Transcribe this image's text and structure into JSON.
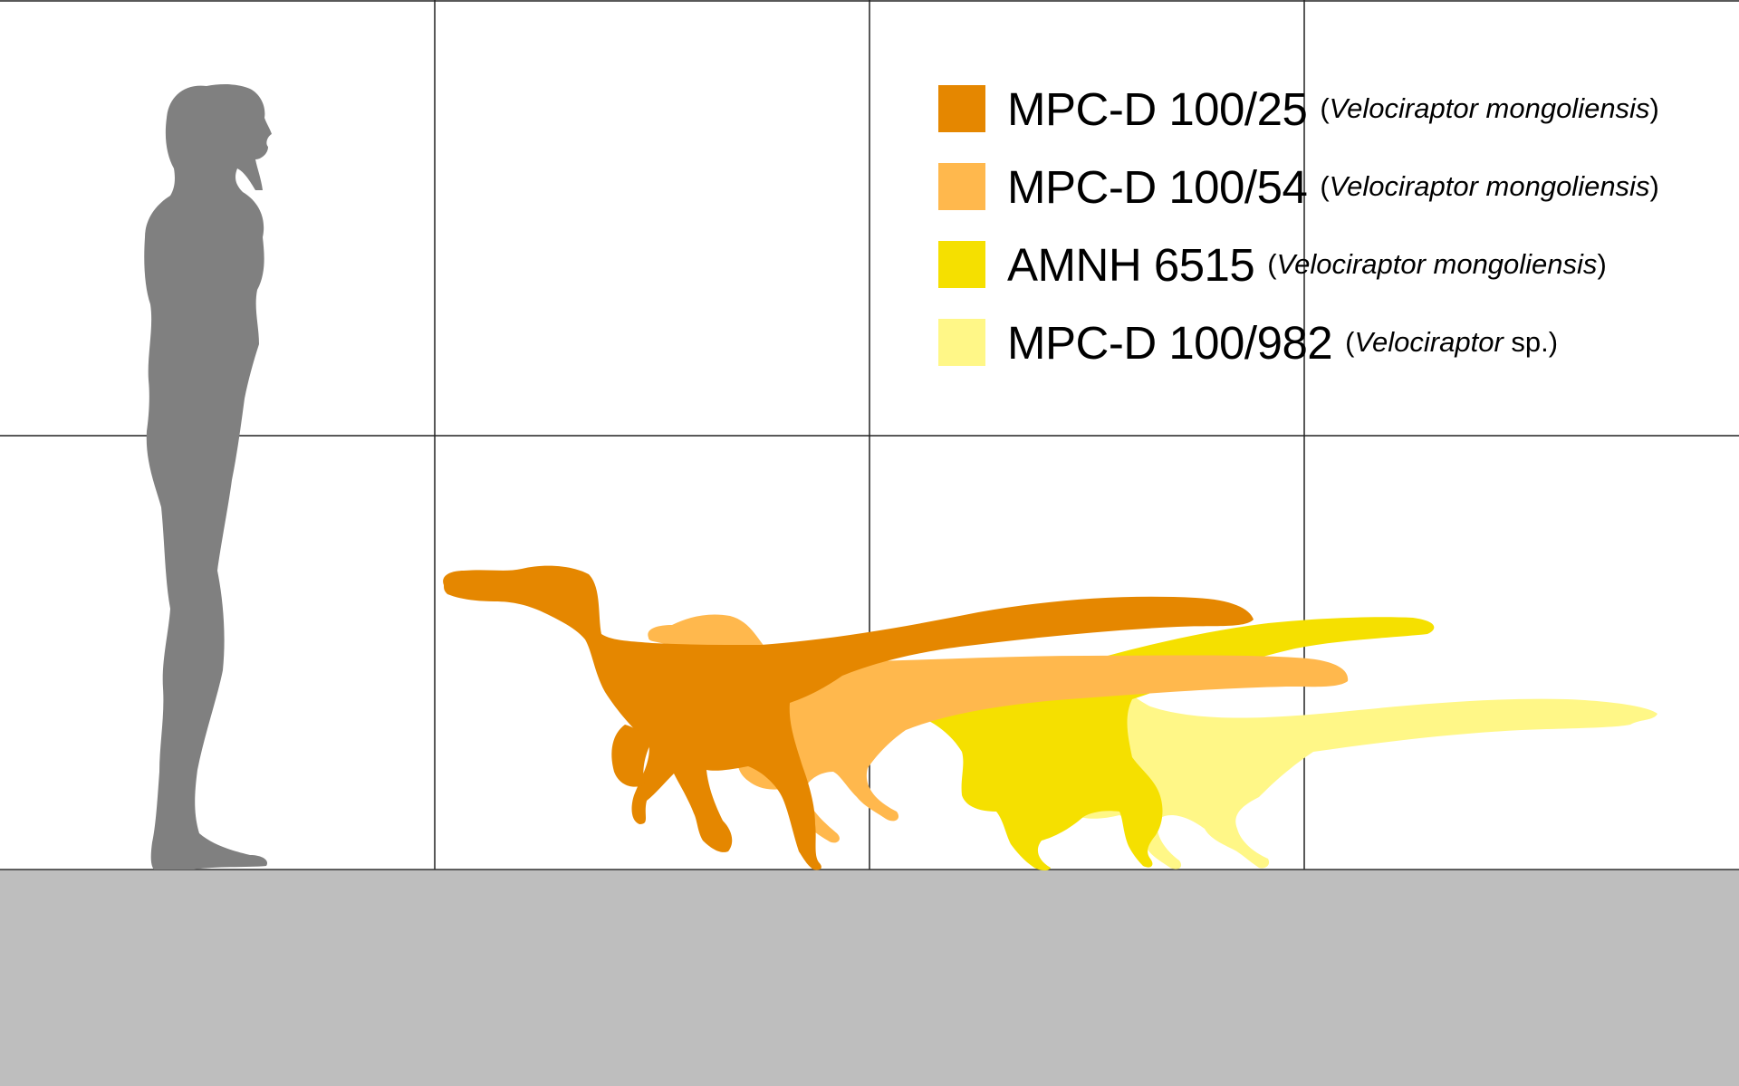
{
  "figure": {
    "background": "#ffffff",
    "grid_color": "#222222",
    "ground_color": "#bebebe",
    "human_color": "#808080"
  },
  "legend": [
    {
      "code": "MPC-D 100/25",
      "open": "(",
      "genus": "Velociraptor mongoliensis",
      "rest": "",
      "close": ")",
      "color": "#e58700"
    },
    {
      "code": "MPC-D 100/54",
      "open": "(",
      "genus": "Velociraptor mongoliensis",
      "rest": "",
      "close": ")",
      "color": "#ffb84d"
    },
    {
      "code": "AMNH 6515",
      "open": "(",
      "genus": "Velociraptor mongoliensis",
      "rest": "",
      "close": ")",
      "color": "#f5e000"
    },
    {
      "code": "MPC-D 100/982",
      "open": "(",
      "genus": "Velociraptor",
      "rest": " sp.",
      "close": ")",
      "color": "#fff787"
    }
  ],
  "silhouettes": [
    {
      "name": "human",
      "color": "#808080"
    },
    {
      "name": "MPC-D 100/25",
      "color": "#e58700"
    },
    {
      "name": "MPC-D 100/54",
      "color": "#ffb84d"
    },
    {
      "name": "AMNH 6515",
      "color": "#f5e000"
    },
    {
      "name": "MPC-D 100/982",
      "color": "#fff787"
    }
  ]
}
